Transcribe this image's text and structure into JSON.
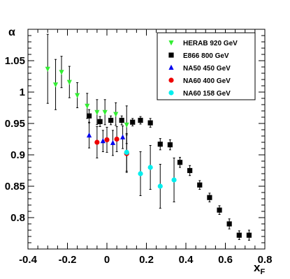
{
  "chart_data": {
    "type": "scatter",
    "title": "",
    "xlabel": "x",
    "xlabel_sub": "F",
    "ylabel": "α",
    "xlim": [
      -0.4,
      0.8
    ],
    "ylim": [
      0.75,
      1.1
    ],
    "x_ticks": [
      -0.4,
      -0.2,
      0,
      0.2,
      0.4,
      0.6,
      0.8
    ],
    "x_tick_labels": [
      "-0.4",
      "-0.2",
      "0",
      "0.2",
      "0.4",
      "0.6",
      "0.8"
    ],
    "y_ticks": [
      0.8,
      0.85,
      0.9,
      0.95,
      1.0,
      1.05
    ],
    "y_tick_labels": [
      "0.8",
      "0.85",
      "0.9",
      "0.95",
      "1",
      "1.05"
    ],
    "grid": false,
    "legend_position": "top-right",
    "series": [
      {
        "name": "HERAB 920 GeV",
        "marker": "triangle-down",
        "color": "#33ee33",
        "points": [
          {
            "x": -0.3,
            "y": 1.037,
            "err": 0.055
          },
          {
            "x": -0.26,
            "y": 1.012,
            "err": 0.04
          },
          {
            "x": -0.23,
            "y": 1.032,
            "err": 0.025
          },
          {
            "x": -0.19,
            "y": 1.016,
            "err": 0.025
          },
          {
            "x": -0.15,
            "y": 0.995,
            "err": 0.02
          },
          {
            "x": -0.1,
            "y": 0.978,
            "err": 0.02
          },
          {
            "x": -0.05,
            "y": 0.968,
            "err": 0.02
          },
          {
            "x": -0.01,
            "y": 0.968,
            "err": 0.02
          },
          {
            "x": 0.045,
            "y": 0.965,
            "err": 0.018
          },
          {
            "x": 0.1,
            "y": 0.948,
            "err": 0.03
          }
        ]
      },
      {
        "name": "E866 800 GeV",
        "marker": "square",
        "color": "#000000",
        "points": [
          {
            "x": -0.09,
            "y": 0.962,
            "err": 0.01
          },
          {
            "x": -0.035,
            "y": 0.953,
            "err": 0.008
          },
          {
            "x": 0.02,
            "y": 0.955,
            "err": 0.007
          },
          {
            "x": 0.075,
            "y": 0.955,
            "err": 0.007
          },
          {
            "x": 0.13,
            "y": 0.952,
            "err": 0.006
          },
          {
            "x": 0.17,
            "y": 0.955,
            "err": 0.006
          },
          {
            "x": 0.22,
            "y": 0.951,
            "err": 0.007
          },
          {
            "x": 0.27,
            "y": 0.917,
            "err": 0.009
          },
          {
            "x": 0.32,
            "y": 0.916,
            "err": 0.008
          },
          {
            "x": 0.37,
            "y": 0.888,
            "err": 0.008
          },
          {
            "x": 0.42,
            "y": 0.875,
            "err": 0.008
          },
          {
            "x": 0.47,
            "y": 0.852,
            "err": 0.007
          },
          {
            "x": 0.52,
            "y": 0.832,
            "err": 0.007
          },
          {
            "x": 0.57,
            "y": 0.812,
            "err": 0.007
          },
          {
            "x": 0.62,
            "y": 0.79,
            "err": 0.008
          },
          {
            "x": 0.67,
            "y": 0.772,
            "err": 0.007
          },
          {
            "x": 0.72,
            "y": 0.772,
            "err": 0.008
          }
        ]
      },
      {
        "name": "NA50 450 GeV",
        "marker": "triangle-up",
        "color": "#0000ee",
        "points": [
          {
            "x": -0.09,
            "y": 0.931,
            "err": 0.02
          },
          {
            "x": -0.02,
            "y": 0.922,
            "err": 0.017
          },
          {
            "x": 0.03,
            "y": 0.919,
            "err": 0.02
          },
          {
            "x": 0.08,
            "y": 0.928,
            "err": 0.018
          }
        ]
      },
      {
        "name": "NA60 400 GeV",
        "marker": "circle",
        "color": "#ee0000",
        "points": [
          {
            "x": -0.05,
            "y": 0.92,
            "err": 0.025
          },
          {
            "x": 0.0,
            "y": 0.924,
            "err": 0.02
          },
          {
            "x": 0.05,
            "y": 0.925,
            "err": 0.02
          },
          {
            "x": 0.1,
            "y": 0.902,
            "err": 0.03
          }
        ]
      },
      {
        "name": "NA60 158 GeV",
        "marker": "circle",
        "color": "#00eeee",
        "points": [
          {
            "x": 0.1,
            "y": 0.904,
            "err": 0.03
          },
          {
            "x": 0.17,
            "y": 0.87,
            "err": 0.035
          },
          {
            "x": 0.22,
            "y": 0.88,
            "err": 0.035
          },
          {
            "x": 0.27,
            "y": 0.85,
            "err": 0.035
          },
          {
            "x": 0.34,
            "y": 0.86,
            "err": 0.035
          }
        ]
      }
    ]
  }
}
